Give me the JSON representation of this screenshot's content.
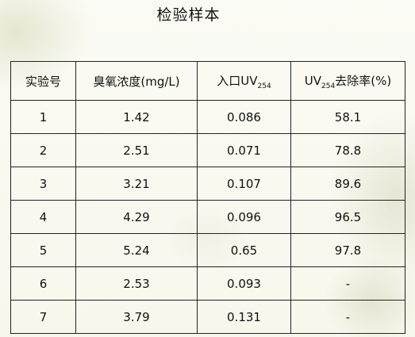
{
  "title": "检验样本",
  "table": {
    "headers": [
      {
        "text": "实验号",
        "sub": "",
        "after": ""
      },
      {
        "text": "臭氧浓度(mg/L)",
        "sub": "",
        "after": ""
      },
      {
        "text": "入口UV",
        "sub": "254",
        "after": ""
      },
      {
        "text": "UV",
        "sub": "254",
        "after": "去除率(%)"
      }
    ],
    "rows": [
      [
        "1",
        "1.42",
        "0.086",
        "58.1"
      ],
      [
        "2",
        "2.51",
        "0.071",
        "78.8"
      ],
      [
        "3",
        "3.21",
        "0.107",
        "89.6"
      ],
      [
        "4",
        "4.29",
        "0.096",
        "96.5"
      ],
      [
        "5",
        "5.24",
        "0.65",
        "97.8"
      ],
      [
        "6",
        "2.53",
        "0.093",
        "-"
      ],
      [
        "7",
        "3.79",
        "0.131",
        "-"
      ]
    ]
  }
}
